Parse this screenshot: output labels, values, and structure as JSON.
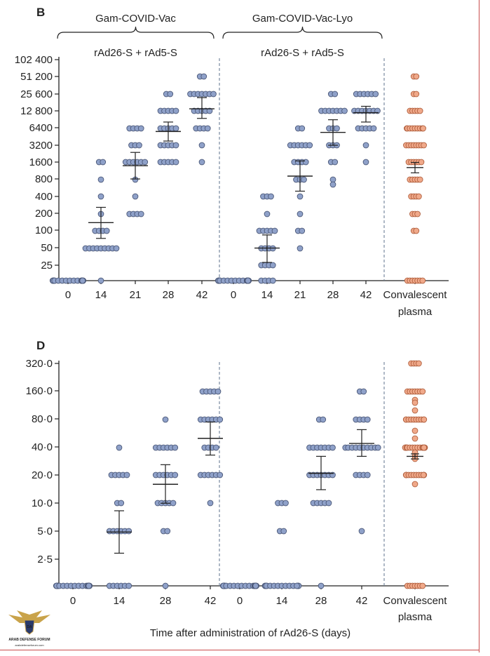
{
  "chart_data": [
    {
      "type": "scatter",
      "panel_label": "B",
      "yscale": "log2",
      "y_ticks": [
        25,
        50,
        100,
        200,
        400,
        800,
        1600,
        3200,
        6400,
        12800,
        25600,
        51200,
        102400
      ],
      "y_tick_labels": [
        "25",
        "50",
        "100",
        "200",
        "400",
        "800",
        "1600",
        "3200",
        "6400",
        "12 800",
        "25 600",
        "51 200",
        "102 400"
      ],
      "groups": [
        {
          "name": "Gam-COVID-Vac",
          "subtitle": "rAd26-S + rAd5-S",
          "x_labels": [
            "0",
            "14",
            "21",
            "28",
            "42"
          ]
        },
        {
          "name": "Gam-COVID-Vac-Lyo",
          "subtitle": "rAd26-S + rAd5-S",
          "x_labels": [
            "0",
            "14",
            "21",
            "28",
            "42"
          ]
        },
        {
          "name": "",
          "subtitle": "",
          "x_labels": [
            "Convalescent",
            "plasma"
          ]
        }
      ],
      "series": [
        {
          "name": "Gam-COVID-Vac day 0",
          "values": [
            12,
            12,
            12,
            12,
            12,
            12,
            12,
            12,
            12,
            12,
            12,
            12,
            12,
            12,
            12,
            12,
            12,
            12,
            12,
            12
          ],
          "mean": 12,
          "ci": [
            12,
            12
          ]
        },
        {
          "name": "Gam-COVID-Vac day 14",
          "values": [
            1600,
            1600,
            800,
            400,
            200,
            100,
            100,
            100,
            100,
            50,
            50,
            50,
            50,
            50,
            50,
            50,
            50,
            50,
            12
          ],
          "mean": 140,
          "ci": [
            74,
            260
          ]
        },
        {
          "name": "Gam-COVID-Vac day 21",
          "values": [
            6400,
            6400,
            6400,
            6400,
            3200,
            3200,
            3200,
            1600,
            1600,
            1600,
            1600,
            1600,
            1600,
            800,
            400,
            200,
            200,
            200,
            200
          ],
          "mean": 1400,
          "ci": [
            820,
            2400
          ]
        },
        {
          "name": "Gam-COVID-Vac day 28",
          "values": [
            25600,
            25600,
            12800,
            12800,
            12800,
            12800,
            12800,
            6400,
            6400,
            6400,
            6400,
            6400,
            3200,
            3200,
            3200,
            3200,
            3200,
            1600,
            1600,
            1600,
            1600,
            1600
          ],
          "mean": 5600,
          "ci": [
            3800,
            8200
          ]
        },
        {
          "name": "Gam-COVID-Vac day 42",
          "values": [
            51200,
            51200,
            25600,
            25600,
            25600,
            25600,
            25600,
            25600,
            25600,
            12800,
            12800,
            12800,
            12800,
            12800,
            6400,
            6400,
            6400,
            6400,
            3200,
            1600
          ],
          "mean": 14000,
          "ci": [
            9500,
            22000
          ]
        },
        {
          "name": "Gam-COVID-Vac-Lyo day 0",
          "values": [
            12,
            12,
            12,
            12,
            12,
            12,
            12,
            12,
            12,
            12,
            12,
            12,
            12,
            12,
            12,
            12,
            12,
            12,
            12,
            12
          ],
          "mean": 12,
          "ci": [
            12,
            12
          ]
        },
        {
          "name": "Gam-COVID-Vac-Lyo day 14",
          "values": [
            400,
            400,
            400,
            200,
            100,
            100,
            100,
            100,
            100,
            50,
            50,
            50,
            50,
            25,
            25,
            25,
            25,
            12,
            12,
            12,
            12
          ],
          "mean": 50,
          "ci": [
            28,
            85
          ]
        },
        {
          "name": "Gam-COVID-Vac-Lyo day 21",
          "values": [
            6400,
            6400,
            3200,
            3200,
            3200,
            3200,
            3200,
            3200,
            1600,
            1600,
            1600,
            1600,
            800,
            800,
            800,
            400,
            200,
            100,
            100,
            50
          ],
          "mean": 920,
          "ci": [
            500,
            1700
          ]
        },
        {
          "name": "Gam-COVID-Vac-Lyo day 28",
          "values": [
            25600,
            25600,
            12800,
            12800,
            12800,
            12800,
            12800,
            12800,
            12800,
            6400,
            6400,
            6400,
            3200,
            3200,
            3200,
            1600,
            1600,
            800,
            650
          ],
          "mean": 5400,
          "ci": [
            3200,
            9000
          ]
        },
        {
          "name": "Gam-COVID-Vac-Lyo day 42",
          "values": [
            25600,
            25600,
            25600,
            25600,
            25600,
            25600,
            12800,
            12800,
            12800,
            12800,
            12800,
            12800,
            12800,
            6400,
            6400,
            6400,
            6400,
            6400,
            3200,
            1600
          ],
          "mean": 12000,
          "ci": [
            8200,
            15500
          ]
        },
        {
          "name": "Convalescent plasma",
          "color": "orange",
          "values": [
            51200,
            51200,
            25600,
            25600,
            12800,
            12800,
            12800,
            12800,
            12800,
            6400,
            6400,
            6400,
            6400,
            6400,
            6400,
            6400,
            6400,
            6400,
            3200,
            3200,
            3200,
            3200,
            3200,
            3200,
            3200,
            3200,
            1600,
            1600,
            1600,
            1600,
            1600,
            1600,
            800,
            800,
            800,
            800,
            800,
            400,
            400,
            400,
            400,
            200,
            200,
            200,
            100,
            100,
            12,
            12,
            12,
            12,
            12,
            12,
            12
          ],
          "mean": 1300,
          "ci": [
            1050,
            1600
          ]
        }
      ]
    },
    {
      "type": "scatter",
      "panel_label": "D",
      "yscale": "log2",
      "y_ticks": [
        2.5,
        5,
        10,
        20,
        40,
        80,
        160,
        320
      ],
      "y_tick_labels": [
        "2·5",
        "5·0",
        "10·0",
        "20·0",
        "40·0",
        "80·0",
        "160·0",
        "320·0"
      ],
      "groups": [
        {
          "x_labels": [
            "0",
            "14",
            "28",
            "42"
          ]
        },
        {
          "x_labels": [
            "0",
            "14",
            "28",
            "42"
          ]
        },
        {
          "x_labels": [
            "Convalescent",
            "plasma"
          ]
        }
      ],
      "xlabel": "Time after administration of rAd26-S (days)",
      "series": [
        {
          "name": "Gam-COVID-Vac day 0",
          "values": [
            1.25,
            1.25,
            1.25,
            1.25,
            1.25,
            1.25,
            1.25,
            1.25,
            1.25,
            1.25,
            1.25,
            1.25,
            1.25,
            1.25,
            1.25,
            1.25,
            1.25,
            1.25,
            1.25,
            1.25
          ],
          "mean": 1.25,
          "ci": [
            1.25,
            1.25
          ]
        },
        {
          "name": "Gam-COVID-Vac day 14",
          "values": [
            40,
            20,
            20,
            20,
            20,
            20,
            10,
            10,
            5,
            5,
            5,
            5,
            5,
            5,
            1.25,
            1.25,
            1.25,
            1.25,
            1.25,
            1.25
          ],
          "mean": 4.9,
          "ci": [
            2.9,
            8.3
          ]
        },
        {
          "name": "Gam-COVID-Vac day 28",
          "values": [
            80,
            40,
            40,
            40,
            40,
            40,
            40,
            20,
            20,
            20,
            20,
            20,
            20,
            10,
            10,
            10,
            10,
            10,
            5,
            5,
            1.25
          ],
          "mean": 16,
          "ci": [
            10,
            26
          ]
        },
        {
          "name": "Gam-COVID-Vac day 42",
          "values": [
            160,
            160,
            160,
            160,
            160,
            80,
            80,
            80,
            80,
            80,
            80,
            40,
            40,
            40,
            40,
            20,
            20,
            20,
            20,
            20,
            20,
            10
          ],
          "mean": 50,
          "ci": [
            33,
            75
          ]
        },
        {
          "name": "Gam-COVID-Vac-Lyo day 0",
          "values": [
            1.25,
            1.25,
            1.25,
            1.25,
            1.25,
            1.25,
            1.25,
            1.25,
            1.25,
            1.25,
            1.25,
            1.25,
            1.25,
            1.25,
            1.25,
            1.25,
            1.25,
            1.25,
            1.25,
            1.25
          ],
          "mean": 1.25,
          "ci": [
            1.25,
            1.25
          ]
        },
        {
          "name": "Gam-COVID-Vac-Lyo day 14",
          "values": [
            10,
            10,
            10,
            5,
            5,
            1.25,
            1.25,
            1.25,
            1.25,
            1.25,
            1.25,
            1.25,
            1.25,
            1.25,
            1.25,
            1.25,
            1.25,
            1.25,
            1.25,
            1.25
          ],
          "mean": 1.8,
          "ci": [
            1.25,
            3
          ]
        },
        {
          "name": "Gam-COVID-Vac-Lyo day 28",
          "values": [
            80,
            80,
            40,
            40,
            40,
            40,
            40,
            40,
            40,
            20,
            20,
            20,
            20,
            20,
            20,
            20,
            10,
            10,
            10,
            10,
            10,
            1.25
          ],
          "mean": 21,
          "ci": [
            14,
            32
          ]
        },
        {
          "name": "Gam-COVID-Vac-Lyo day 42",
          "values": [
            160,
            160,
            80,
            80,
            80,
            80,
            40,
            40,
            40,
            40,
            40,
            40,
            40,
            40,
            40,
            40,
            20,
            20,
            20,
            20,
            5
          ],
          "mean": 44,
          "ci": [
            32,
            62
          ]
        },
        {
          "name": "Convalescent plasma",
          "color": "orange",
          "values": [
            320,
            320,
            320,
            320,
            160,
            160,
            160,
            160,
            160,
            160,
            160,
            130,
            120,
            100,
            80,
            80,
            80,
            80,
            80,
            80,
            80,
            80,
            80,
            80,
            60,
            50,
            40,
            40,
            40,
            40,
            40,
            40,
            40,
            40,
            40,
            40,
            40,
            40,
            40,
            40,
            40,
            35,
            32,
            30,
            20,
            20,
            20,
            20,
            20,
            20,
            20,
            20,
            20,
            20,
            20,
            20,
            16,
            1.25,
            1.25,
            1.25,
            1.25,
            1.25,
            1.25,
            1.25
          ],
          "mean": 32,
          "ci": [
            30,
            34
          ]
        }
      ]
    }
  ],
  "colors": {
    "blue_fill": "#8fa1c9",
    "blue_stroke": "#4a5777",
    "orange_fill": "#f0a98a",
    "orange_stroke": "#b0603f",
    "divider": "#6b7f96",
    "border": "#c94c4c"
  },
  "watermark": {
    "line1": "ARAB DEFENSE FORUM",
    "line2": "arabdefenseforum.com",
    "icon": "eagle-logo-icon"
  }
}
